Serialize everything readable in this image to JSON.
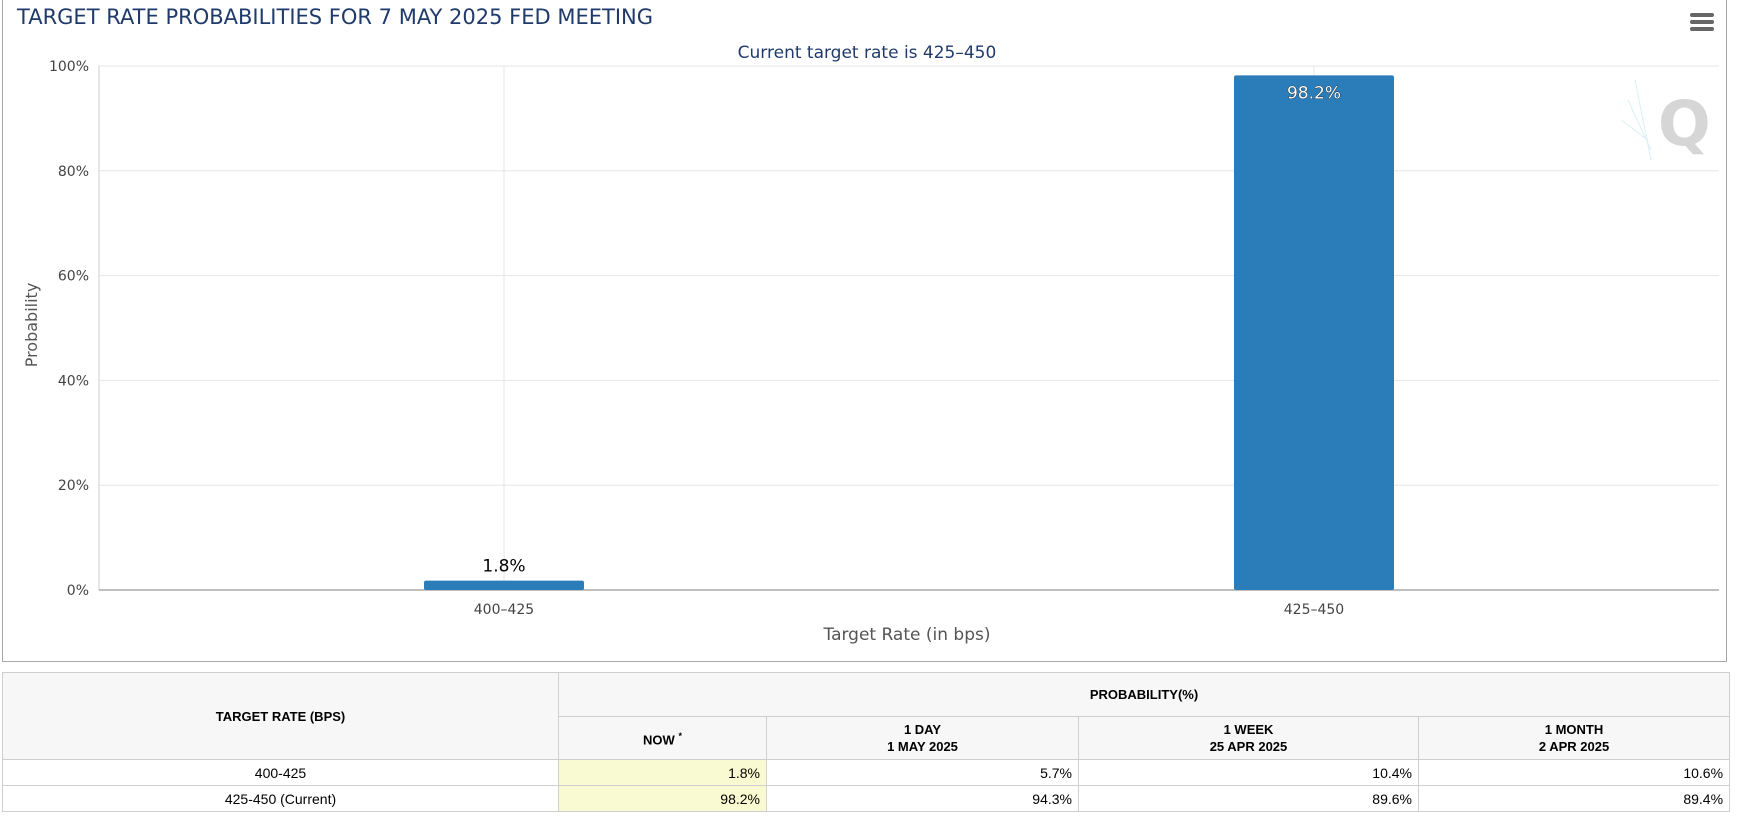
{
  "chart_title": "TARGET RATE PROBABILITIES FOR 7 MAY 2025 FED MEETING",
  "menu_icon": "hamburger-menu-icon",
  "watermark_icon": "quikstrike-q-logo",
  "chart_data": {
    "type": "bar",
    "title": "TARGET RATE PROBABILITIES FOR 7 MAY 2025 FED MEETING",
    "subtitle": "Current target rate is 425–450",
    "xlabel": "Target Rate (in bps)",
    "ylabel": "Probability",
    "categories": [
      "400–425",
      "425–450"
    ],
    "values": [
      1.8,
      98.2
    ],
    "data_labels": [
      "1.8%",
      "98.2%"
    ],
    "ylim": [
      0,
      100
    ],
    "yticks": [
      0,
      20,
      40,
      60,
      80,
      100
    ],
    "ytick_labels": [
      "0%",
      "20%",
      "40%",
      "60%",
      "80%",
      "100%"
    ],
    "bar_color": "#2a7db8",
    "grid": true,
    "legend": "none"
  },
  "table": {
    "target_rate_header": "TARGET RATE (BPS)",
    "probability_header": "PROBABILITY(%)",
    "columns": [
      {
        "line1": "NOW",
        "line2": "",
        "marker": "*"
      },
      {
        "line1": "1 DAY",
        "line2": "1 MAY 2025",
        "marker": ""
      },
      {
        "line1": "1 WEEK",
        "line2": "25 APR 2025",
        "marker": ""
      },
      {
        "line1": "1 MONTH",
        "line2": "2 APR 2025",
        "marker": ""
      }
    ],
    "rows": [
      {
        "rate": "400-425",
        "values": [
          "1.8%",
          "5.7%",
          "10.4%",
          "10.6%"
        ]
      },
      {
        "rate": "425-450 (Current)",
        "values": [
          "98.2%",
          "94.3%",
          "89.6%",
          "89.4%"
        ]
      }
    ],
    "now_highlight_color": "#fafad2"
  }
}
